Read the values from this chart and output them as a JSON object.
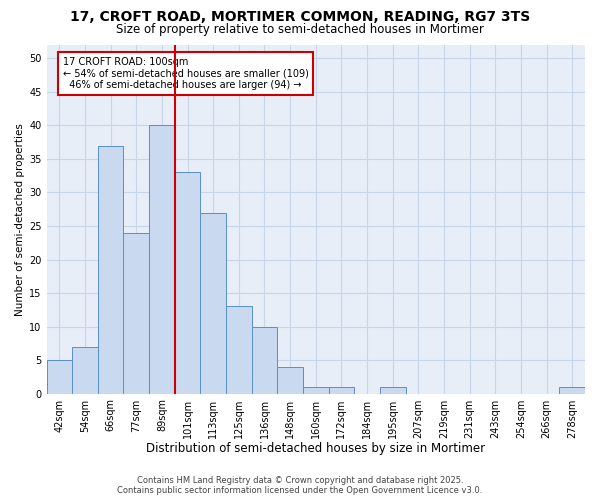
{
  "title1": "17, CROFT ROAD, MORTIMER COMMON, READING, RG7 3TS",
  "title2": "Size of property relative to semi-detached houses in Mortimer",
  "xlabel": "Distribution of semi-detached houses by size in Mortimer",
  "ylabel": "Number of semi-detached properties",
  "categories": [
    "42sqm",
    "54sqm",
    "66sqm",
    "77sqm",
    "89sqm",
    "101sqm",
    "113sqm",
    "125sqm",
    "136sqm",
    "148sqm",
    "160sqm",
    "172sqm",
    "184sqm",
    "195sqm",
    "207sqm",
    "219sqm",
    "231sqm",
    "243sqm",
    "254sqm",
    "266sqm",
    "278sqm"
  ],
  "values": [
    5,
    7,
    37,
    24,
    40,
    33,
    27,
    13,
    10,
    4,
    1,
    1,
    0,
    1,
    0,
    0,
    0,
    0,
    0,
    0,
    1
  ],
  "bar_color": "#c9d9f0",
  "bar_edge_color": "#5b8fc9",
  "property_label": "17 CROFT ROAD: 100sqm",
  "annotation_smaller": "← 54% of semi-detached houses are smaller (109)",
  "annotation_larger": "  46% of semi-detached houses are larger (94) →",
  "vline_color": "#cc0000",
  "annotation_box_edge": "#cc0000",
  "ylim": [
    0,
    52
  ],
  "yticks": [
    0,
    5,
    10,
    15,
    20,
    25,
    30,
    35,
    40,
    45,
    50
  ],
  "grid_color": "#c8d4e8",
  "background_color": "#e8eef8",
  "footnote1": "Contains HM Land Registry data © Crown copyright and database right 2025.",
  "footnote2": "Contains public sector information licensed under the Open Government Licence v3.0.",
  "title1_fontsize": 10,
  "title2_fontsize": 8.5,
  "xlabel_fontsize": 8.5,
  "ylabel_fontsize": 7.5,
  "tick_fontsize": 7,
  "annotation_fontsize": 7,
  "footnote_fontsize": 6
}
